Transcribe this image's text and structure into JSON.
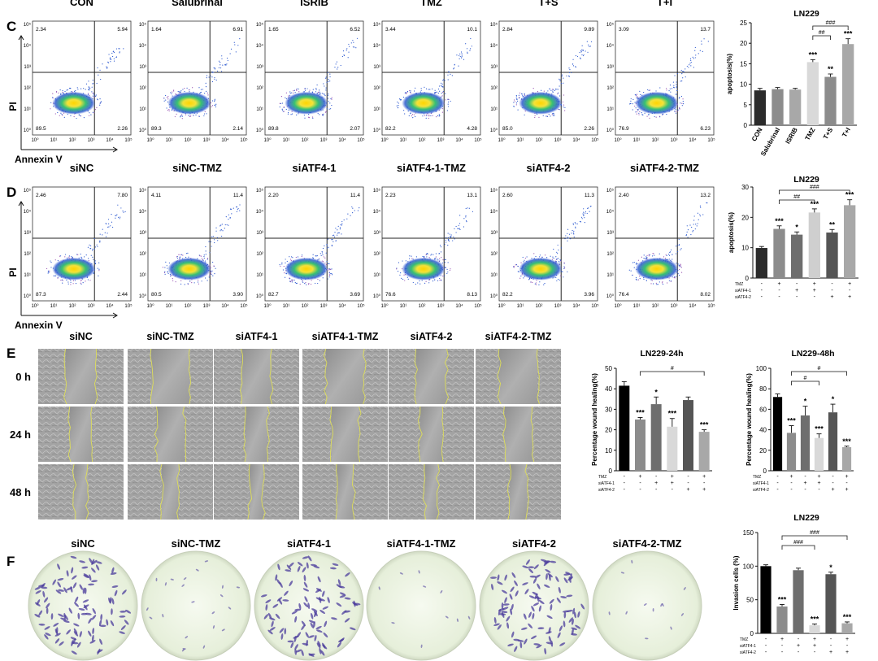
{
  "panels": {
    "C": {
      "label": "C",
      "conditions": [
        "CON",
        "Salubrinal",
        "ISRIB",
        "TMZ",
        "T+S",
        "T+I"
      ],
      "quadrants": [
        {
          "ul": "2.34",
          "ur": "5.94",
          "ll": "89.5",
          "lr": "2.26"
        },
        {
          "ul": "1.64",
          "ur": "6.91",
          "ll": "89.3",
          "lr": "2.14"
        },
        {
          "ul": "1.65",
          "ur": "6.52",
          "ll": "89.8",
          "lr": "2.07"
        },
        {
          "ul": "3.44",
          "ur": "10.1",
          "ll": "82.2",
          "lr": "4.28"
        },
        {
          "ul": "2.84",
          "ur": "9.89",
          "ll": "85.0",
          "lr": "2.26"
        },
        {
          "ul": "3.09",
          "ur": "13.7",
          "ll": "76.9",
          "lr": "6.23"
        }
      ],
      "y_axis_label": "PI",
      "x_axis_label": "Annexin V"
    },
    "D": {
      "label": "D",
      "conditions": [
        "siNC",
        "siNC-TMZ",
        "siATF4-1",
        "siATF4-1-TMZ",
        "siATF4-2",
        "siATF4-2-TMZ"
      ],
      "quadrants": [
        {
          "ul": "2.46",
          "ur": "7.80",
          "ll": "87.3",
          "lr": "2.44"
        },
        {
          "ul": "4.11",
          "ur": "11.4",
          "ll": "80.5",
          "lr": "3.90"
        },
        {
          "ul": "2.20",
          "ur": "11.4",
          "ll": "82.7",
          "lr": "3.69"
        },
        {
          "ul": "2.23",
          "ur": "13.1",
          "ll": "76.6",
          "lr": "8.13"
        },
        {
          "ul": "2.60",
          "ur": "11.3",
          "ll": "82.2",
          "lr": "3.96"
        },
        {
          "ul": "2.40",
          "ur": "13.2",
          "ll": "76.4",
          "lr": "8.02"
        }
      ],
      "y_axis_label": "PI",
      "x_axis_label": "Annexin V"
    },
    "E": {
      "label": "E",
      "conditions": [
        "siNC",
        "siNC-TMZ",
        "siATF4-1",
        "siATF4-1-TMZ",
        "siATF4-2",
        "siATF4-2-TMZ"
      ],
      "timepoints": [
        "0 h",
        "24 h",
        "48 h"
      ]
    },
    "F": {
      "label": "F",
      "conditions": [
        "siNC",
        "siNC-TMZ",
        "siATF4-1",
        "siATF4-1-TMZ",
        "siATF4-2",
        "siATF4-2-TMZ"
      ]
    }
  },
  "flow_ticks": {
    "x": [
      "10⁰",
      "10¹",
      "10²",
      "10³",
      "10⁴",
      "10⁵"
    ],
    "y": [
      "10⁵",
      "10⁴",
      "10³",
      "10²",
      "10¹",
      "10⁰"
    ]
  },
  "chart_data": [
    {
      "id": "C",
      "type": "bar",
      "title": "LN229",
      "ylabel": "apoptosis(%)",
      "ylim": [
        0,
        25
      ],
      "yticks": [
        "0",
        "5",
        "10",
        "15",
        "20",
        "25"
      ],
      "categories": [
        "CON",
        "Salubrinal",
        "ISRIB",
        "TMZ",
        "T+S",
        "T+I"
      ],
      "values": [
        8.5,
        8.8,
        8.7,
        15.4,
        11.8,
        19.8
      ],
      "errors": [
        0.5,
        0.4,
        0.3,
        0.6,
        0.7,
        1.3
      ],
      "colors": [
        "#2b2b2b",
        "#8c8c8c",
        "#a8a8a8",
        "#d9d9d9",
        "#8c8c8c",
        "#a8a8a8"
      ],
      "significance": [
        "",
        "",
        "",
        "***",
        "**",
        "***"
      ],
      "comparisons": [
        {
          "from": 3,
          "to": 4,
          "label": "##"
        },
        {
          "from": 3,
          "to": 5,
          "label": "###"
        }
      ],
      "legend": "none",
      "grid": false
    },
    {
      "id": "D",
      "type": "bar",
      "title": "LN229",
      "ylabel": "apoptosis(%)",
      "ylim": [
        0,
        30
      ],
      "yticks": [
        "0",
        "10",
        "20",
        "30"
      ],
      "categories": [
        "siNC",
        "siNC-TMZ",
        "siATF4-1",
        "siATF4-1-TMZ",
        "siATF4-2",
        "siATF4-2-TMZ"
      ],
      "values": [
        9.9,
        16.2,
        14.3,
        21.6,
        15.0,
        24.0
      ],
      "errors": [
        0.5,
        1.0,
        0.9,
        1.2,
        1.0,
        1.8
      ],
      "colors": [
        "#2b2b2b",
        "#8c8c8c",
        "#6e6e6e",
        "#cfcfcf",
        "#555555",
        "#a8a8a8"
      ],
      "significance": [
        "",
        "***",
        "*",
        "***",
        "**",
        "***"
      ],
      "comparisons": [
        {
          "from": 1,
          "to": 3,
          "label": "##"
        },
        {
          "from": 1,
          "to": 5,
          "label": "###"
        }
      ],
      "matrix": {
        "rows": [
          "TMZ",
          "siATF4-1",
          "siATF4-2"
        ],
        "values": [
          [
            "-",
            "+",
            "-",
            "+",
            "-",
            "+"
          ],
          [
            "-",
            "-",
            "+",
            "+",
            "-",
            "-"
          ],
          [
            "-",
            "-",
            "-",
            "-",
            "+",
            "+"
          ]
        ]
      },
      "legend": "none",
      "grid": false
    },
    {
      "id": "E1",
      "type": "bar",
      "title": "LN229-24h",
      "ylabel": "Percentage wound healing(%)",
      "ylim": [
        0,
        50
      ],
      "yticks": [
        "0",
        "10",
        "20",
        "30",
        "40",
        "50"
      ],
      "categories": [
        "siNC",
        "siNC-TMZ",
        "siATF4-1",
        "siATF4-1-TMZ",
        "siATF4-2",
        "siATF4-2-TMZ"
      ],
      "values": [
        41.5,
        25.0,
        32.5,
        21.5,
        34.5,
        19.0
      ],
      "errors": [
        2.0,
        1.0,
        3.5,
        4.0,
        1.5,
        1.0
      ],
      "colors": [
        "#000000",
        "#8c8c8c",
        "#6e6e6e",
        "#d9d9d9",
        "#555555",
        "#a8a8a8"
      ],
      "significance": [
        "",
        "***",
        "*",
        "***",
        "",
        "***"
      ],
      "comparisons": [
        {
          "from": 1,
          "to": 5,
          "label": "#"
        }
      ],
      "matrix": {
        "rows": [
          "TMZ",
          "siATF4-1",
          "siATF4-2"
        ],
        "values": [
          [
            "-",
            "+",
            "-",
            "+",
            "-",
            "+"
          ],
          [
            "-",
            "-",
            "+",
            "+",
            "-",
            "-"
          ],
          [
            "-",
            "-",
            "-",
            "-",
            "+",
            "+"
          ]
        ]
      },
      "legend": "none",
      "grid": false
    },
    {
      "id": "E2",
      "type": "bar",
      "title": "LN229-48h",
      "ylabel": "Percentage wound healing(%)",
      "ylim": [
        0,
        100
      ],
      "yticks": [
        "0",
        "20",
        "40",
        "60",
        "80",
        "100"
      ],
      "categories": [
        "siNC",
        "siNC-TMZ",
        "siATF4-1",
        "siATF4-1-TMZ",
        "siATF4-2",
        "siATF4-2-TMZ"
      ],
      "values": [
        72.0,
        37.0,
        54.0,
        32.0,
        57.0,
        23.0
      ],
      "errors": [
        3.0,
        7.0,
        9.0,
        4.0,
        8.0,
        1.0
      ],
      "colors": [
        "#000000",
        "#8c8c8c",
        "#6e6e6e",
        "#d9d9d9",
        "#555555",
        "#a8a8a8"
      ],
      "significance": [
        "",
        "***",
        "*",
        "***",
        "*",
        "***"
      ],
      "comparisons": [
        {
          "from": 1,
          "to": 3,
          "label": "#"
        },
        {
          "from": 1,
          "to": 5,
          "label": "#"
        }
      ],
      "matrix": {
        "rows": [
          "TMZ",
          "siATF4-1",
          "siATF4-2"
        ],
        "values": [
          [
            "-",
            "+",
            "-",
            "+",
            "-",
            "+"
          ],
          [
            "-",
            "-",
            "+",
            "+",
            "-",
            "-"
          ],
          [
            "-",
            "-",
            "-",
            "-",
            "+",
            "+"
          ]
        ]
      },
      "legend": "none",
      "grid": false
    },
    {
      "id": "F",
      "type": "bar",
      "title": "LN229",
      "ylabel": "Invasion cells (%)",
      "ylim": [
        0,
        150
      ],
      "yticks": [
        "0",
        "50",
        "100",
        "150"
      ],
      "categories": [
        "siNC",
        "siNC-TMZ",
        "siATF4-1",
        "siATF4-1-TMZ",
        "siATF4-2",
        "siATF4-2-TMZ"
      ],
      "values": [
        100.0,
        40.0,
        94.0,
        12.0,
        88.0,
        15.0
      ],
      "errors": [
        2.0,
        3.0,
        3.0,
        2.0,
        3.0,
        2.0
      ],
      "colors": [
        "#000000",
        "#8c8c8c",
        "#6e6e6e",
        "#d9d9d9",
        "#555555",
        "#a8a8a8"
      ],
      "significance": [
        "",
        "***",
        "",
        "***",
        "*",
        "***"
      ],
      "comparisons": [
        {
          "from": 1,
          "to": 3,
          "label": "###"
        },
        {
          "from": 1,
          "to": 5,
          "label": "###"
        }
      ],
      "matrix": {
        "rows": [
          "TMZ",
          "siATF4-1",
          "siATF4-2"
        ],
        "values": [
          [
            "-",
            "+",
            "-",
            "+",
            "-",
            "+"
          ],
          [
            "-",
            "-",
            "+",
            "+",
            "-",
            "-"
          ],
          [
            "-",
            "-",
            "-",
            "-",
            "+",
            "+"
          ]
        ]
      },
      "legend": "none",
      "grid": false
    }
  ],
  "colors": {
    "scatter_core": "#ffd400",
    "scatter_mid": "#38c172",
    "scatter_edge": "#2f5bd0",
    "scatter_outlier": "#9b59b6",
    "wound_line": "#dede5a",
    "stain": "#4b3c9c"
  }
}
